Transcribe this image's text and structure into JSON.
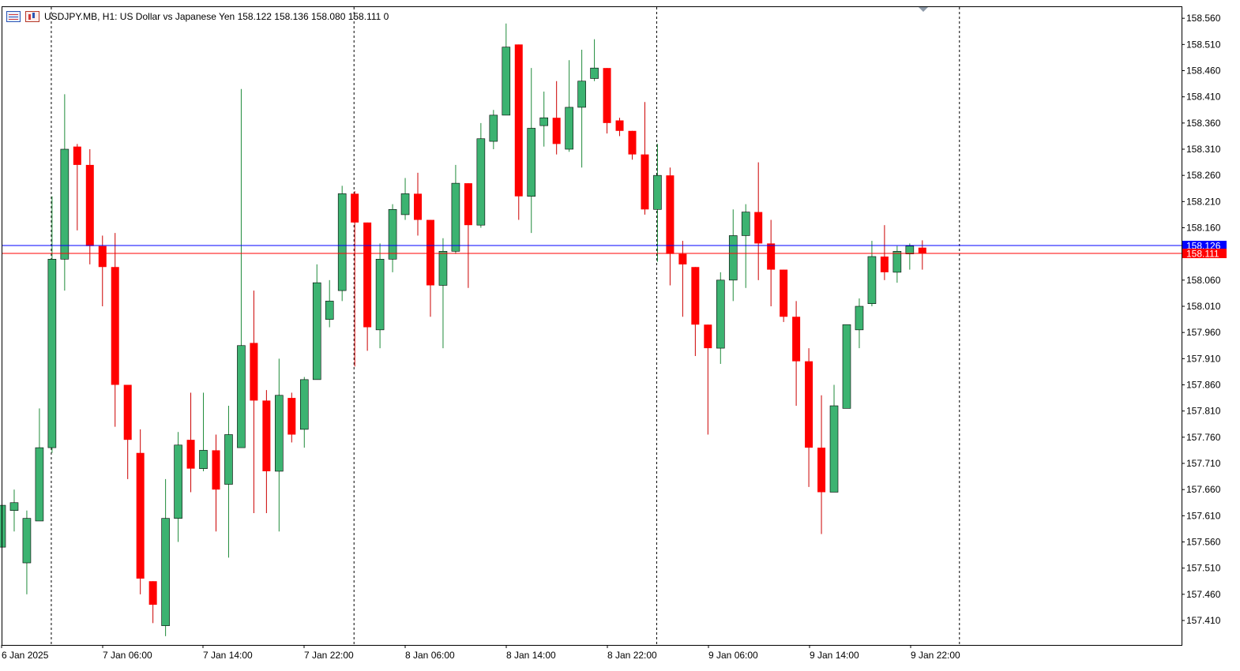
{
  "header": {
    "symbol_line": "USDJPY.MB, H1:  US Dollar vs Japanese Yen  158.122 158.136 158.080 158.111  0"
  },
  "price_tags": {
    "ask_label": "158.126",
    "bid_label": "158.111",
    "ask_color": "#0000ff",
    "bid_color": "#ff0000"
  },
  "icons": [
    "market-watch-icon",
    "chart-bars-icon"
  ],
  "colors": {
    "bull": "#3cb371",
    "bear": "#ff0000",
    "wick_bull": "#1f8b3a",
    "wick_bear": "#cc0000",
    "border": "#000000",
    "separator": "#000000"
  },
  "chart_data": {
    "type": "candlestick",
    "title": "",
    "xlabel": "",
    "ylabel": "",
    "ylim": [
      157.37,
      158.585
    ],
    "y_ticks": [
      "158.560",
      "158.510",
      "158.460",
      "158.410",
      "158.360",
      "158.310",
      "158.260",
      "158.210",
      "158.160",
      "158.060",
      "158.010",
      "157.960",
      "157.910",
      "157.860",
      "157.810",
      "157.760",
      "157.710",
      "157.660",
      "157.610",
      "157.560",
      "157.510",
      "157.460",
      "157.410"
    ],
    "x_tick_labels": [
      "6 Jan 2025",
      "7 Jan 06:00",
      "7 Jan 14:00",
      "7 Jan 22:00",
      "8 Jan 06:00",
      "8 Jan 14:00",
      "8 Jan 22:00",
      "9 Jan 06:00",
      "9 Jan 14:00",
      "9 Jan 22:00"
    ],
    "day_separators": [
      "7 Jan",
      "8 Jan",
      "9 Jan",
      "10 Jan"
    ],
    "ask": 158.126,
    "bid": 158.111,
    "candles": [
      {
        "o": 157.55,
        "h": 157.63,
        "l": 157.55,
        "c": 157.63
      },
      {
        "o": 157.62,
        "h": 157.66,
        "l": 157.58,
        "c": 157.635
      },
      {
        "o": 157.52,
        "h": 157.62,
        "l": 157.46,
        "c": 157.605
      },
      {
        "o": 157.6,
        "h": 157.815,
        "l": 157.6,
        "c": 157.74
      },
      {
        "o": 157.74,
        "h": 158.22,
        "l": 157.73,
        "c": 158.1
      },
      {
        "o": 158.1,
        "h": 158.415,
        "l": 158.04,
        "c": 158.31
      },
      {
        "o": 158.315,
        "h": 158.32,
        "l": 158.155,
        "c": 158.28
      },
      {
        "o": 158.28,
        "h": 158.31,
        "l": 158.09,
        "c": 158.125
      },
      {
        "o": 158.125,
        "h": 158.145,
        "l": 158.01,
        "c": 158.085
      },
      {
        "o": 158.085,
        "h": 158.15,
        "l": 157.78,
        "c": 157.86
      },
      {
        "o": 157.86,
        "h": 157.86,
        "l": 157.68,
        "c": 157.755
      },
      {
        "o": 157.73,
        "h": 157.775,
        "l": 157.46,
        "c": 157.49
      },
      {
        "o": 157.485,
        "h": 157.485,
        "l": 157.405,
        "c": 157.44
      },
      {
        "o": 157.4,
        "h": 157.68,
        "l": 157.38,
        "c": 157.605
      },
      {
        "o": 157.605,
        "h": 157.77,
        "l": 157.56,
        "c": 157.745
      },
      {
        "o": 157.755,
        "h": 157.845,
        "l": 157.655,
        "c": 157.7
      },
      {
        "o": 157.7,
        "h": 157.845,
        "l": 157.695,
        "c": 157.735
      },
      {
        "o": 157.735,
        "h": 157.765,
        "l": 157.58,
        "c": 157.66
      },
      {
        "o": 157.67,
        "h": 157.82,
        "l": 157.53,
        "c": 157.765
      },
      {
        "o": 157.74,
        "h": 158.425,
        "l": 157.74,
        "c": 157.935
      },
      {
        "o": 157.94,
        "h": 158.04,
        "l": 157.615,
        "c": 157.83
      },
      {
        "o": 157.83,
        "h": 157.85,
        "l": 157.615,
        "c": 157.695
      },
      {
        "o": 157.695,
        "h": 157.91,
        "l": 157.58,
        "c": 157.84
      },
      {
        "o": 157.835,
        "h": 157.845,
        "l": 157.75,
        "c": 157.765
      },
      {
        "o": 157.775,
        "h": 157.875,
        "l": 157.74,
        "c": 157.87
      },
      {
        "o": 157.87,
        "h": 158.09,
        "l": 157.87,
        "c": 158.055
      },
      {
        "o": 157.985,
        "h": 158.06,
        "l": 157.97,
        "c": 158.02
      },
      {
        "o": 158.04,
        "h": 158.24,
        "l": 158.02,
        "c": 158.225
      },
      {
        "o": 158.225,
        "h": 158.23,
        "l": 157.895,
        "c": 158.17
      },
      {
        "o": 158.17,
        "h": 158.17,
        "l": 157.925,
        "c": 157.97
      },
      {
        "o": 157.965,
        "h": 158.13,
        "l": 157.93,
        "c": 158.1
      },
      {
        "o": 158.1,
        "h": 158.205,
        "l": 158.075,
        "c": 158.195
      },
      {
        "o": 158.185,
        "h": 158.255,
        "l": 158.175,
        "c": 158.225
      },
      {
        "o": 158.225,
        "h": 158.265,
        "l": 158.145,
        "c": 158.175
      },
      {
        "o": 158.175,
        "h": 158.175,
        "l": 157.99,
        "c": 158.05
      },
      {
        "o": 158.05,
        "h": 158.14,
        "l": 157.93,
        "c": 158.115
      },
      {
        "o": 158.115,
        "h": 158.28,
        "l": 158.11,
        "c": 158.245
      },
      {
        "o": 158.245,
        "h": 158.245,
        "l": 158.045,
        "c": 158.165
      },
      {
        "o": 158.165,
        "h": 158.36,
        "l": 158.16,
        "c": 158.33
      },
      {
        "o": 158.325,
        "h": 158.385,
        "l": 158.31,
        "c": 158.375
      },
      {
        "o": 158.375,
        "h": 158.55,
        "l": 158.375,
        "c": 158.505
      },
      {
        "o": 158.51,
        "h": 158.51,
        "l": 158.175,
        "c": 158.22
      },
      {
        "o": 158.22,
        "h": 158.465,
        "l": 158.15,
        "c": 158.35
      },
      {
        "o": 158.355,
        "h": 158.42,
        "l": 158.315,
        "c": 158.37
      },
      {
        "o": 158.37,
        "h": 158.44,
        "l": 158.3,
        "c": 158.32
      },
      {
        "o": 158.31,
        "h": 158.48,
        "l": 158.305,
        "c": 158.39
      },
      {
        "o": 158.39,
        "h": 158.5,
        "l": 158.275,
        "c": 158.44
      },
      {
        "o": 158.445,
        "h": 158.52,
        "l": 158.44,
        "c": 158.465
      },
      {
        "o": 158.465,
        "h": 158.465,
        "l": 158.34,
        "c": 158.36
      },
      {
        "o": 158.365,
        "h": 158.37,
        "l": 158.335,
        "c": 158.345
      },
      {
        "o": 158.345,
        "h": 158.345,
        "l": 158.29,
        "c": 158.3
      },
      {
        "o": 158.3,
        "h": 158.4,
        "l": 158.185,
        "c": 158.195
      },
      {
        "o": 158.195,
        "h": 158.32,
        "l": 158.095,
        "c": 158.26
      },
      {
        "o": 158.26,
        "h": 158.275,
        "l": 158.05,
        "c": 158.11
      },
      {
        "o": 158.11,
        "h": 158.135,
        "l": 157.99,
        "c": 158.09
      },
      {
        "o": 158.085,
        "h": 158.085,
        "l": 157.915,
        "c": 157.975
      },
      {
        "o": 157.975,
        "h": 157.975,
        "l": 157.765,
        "c": 157.93
      },
      {
        "o": 157.93,
        "h": 158.075,
        "l": 157.9,
        "c": 158.06
      },
      {
        "o": 158.06,
        "h": 158.195,
        "l": 158.02,
        "c": 158.145
      },
      {
        "o": 158.145,
        "h": 158.205,
        "l": 158.045,
        "c": 158.19
      },
      {
        "o": 158.19,
        "h": 158.285,
        "l": 158.06,
        "c": 158.13
      },
      {
        "o": 158.13,
        "h": 158.175,
        "l": 158.01,
        "c": 158.08
      },
      {
        "o": 158.08,
        "h": 158.08,
        "l": 157.98,
        "c": 157.99
      },
      {
        "o": 157.99,
        "h": 158.02,
        "l": 157.82,
        "c": 157.905
      },
      {
        "o": 157.905,
        "h": 157.93,
        "l": 157.665,
        "c": 157.74
      },
      {
        "o": 157.74,
        "h": 157.84,
        "l": 157.575,
        "c": 157.655
      },
      {
        "o": 157.655,
        "h": 157.86,
        "l": 157.655,
        "c": 157.82
      },
      {
        "o": 157.815,
        "h": 157.975,
        "l": 157.815,
        "c": 157.975
      },
      {
        "o": 157.965,
        "h": 158.025,
        "l": 157.93,
        "c": 158.01
      },
      {
        "o": 158.015,
        "h": 158.135,
        "l": 158.01,
        "c": 158.105
      },
      {
        "o": 158.105,
        "h": 158.165,
        "l": 158.06,
        "c": 158.075
      },
      {
        "o": 158.075,
        "h": 158.125,
        "l": 158.055,
        "c": 158.115
      },
      {
        "o": 158.11,
        "h": 158.13,
        "l": 158.08,
        "c": 158.125
      },
      {
        "o": 158.122,
        "h": 158.136,
        "l": 158.08,
        "c": 158.111
      }
    ]
  }
}
